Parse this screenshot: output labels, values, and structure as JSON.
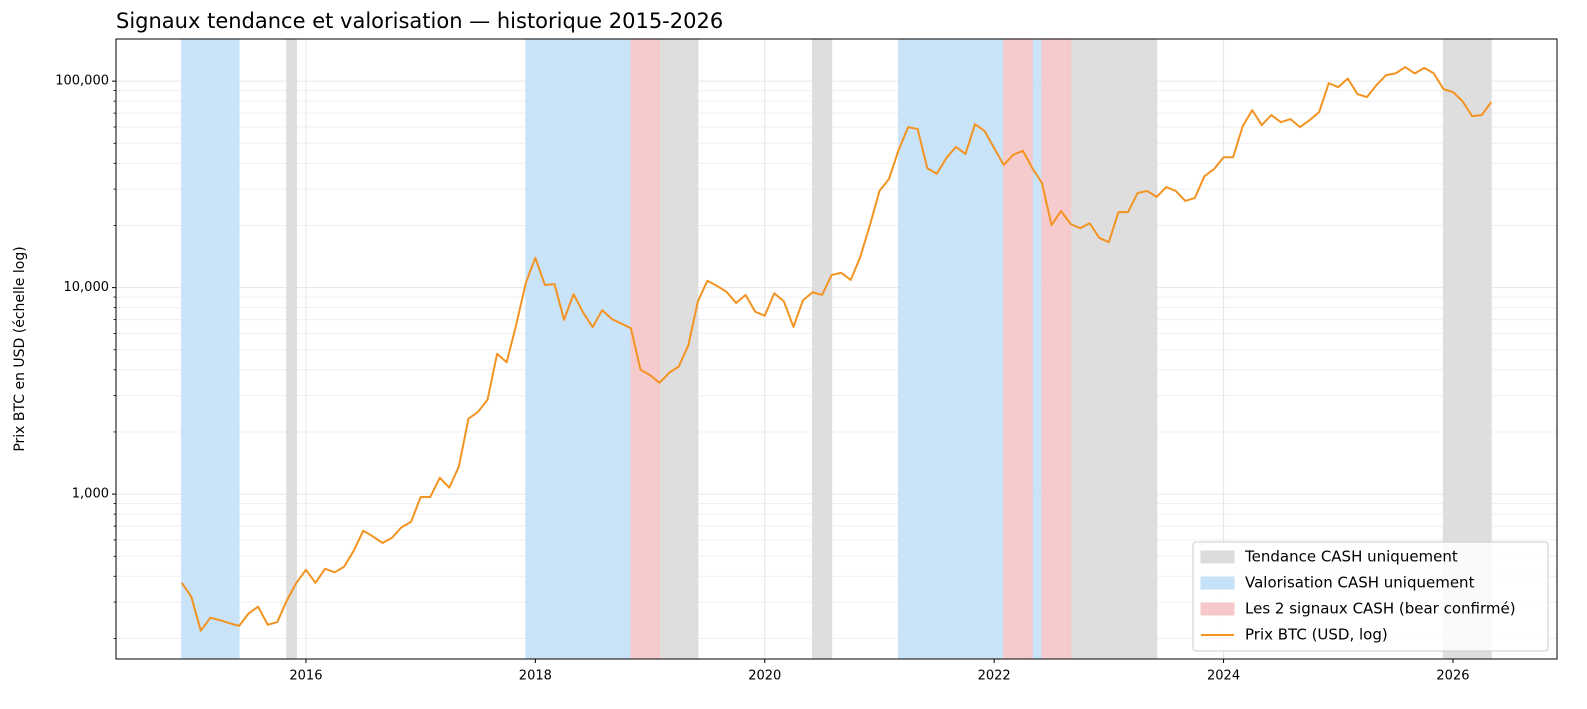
{
  "chart_data": {
    "type": "line",
    "title": "Signaux tendance et valorisation — historique 2015-2026",
    "y_label": "Prix BTC en USD (échelle log)",
    "log_y": true,
    "grid": true,
    "legend": "lower right",
    "xlim": [
      2014.344,
      2026.907
    ],
    "xticks": [
      2016,
      2018,
      2020,
      2022,
      2024,
      2026
    ],
    "ylim": [
      159,
      160000
    ],
    "yticks": [
      {
        "value": 1000,
        "label": "1,000"
      },
      {
        "value": 10000,
        "label": "10,000"
      },
      {
        "value": 100000,
        "label": "100,000"
      }
    ],
    "bands": [
      {
        "name": "Tendance CASH uniquement",
        "color": "#dcdcdc",
        "spans": [
          [
            2015.833,
            2015.917
          ],
          [
            2019.083,
            2019.417
          ],
          [
            2020.417,
            2020.583
          ],
          [
            2022.667,
            2023.417
          ],
          [
            2025.917,
            2026.333
          ]
        ]
      },
      {
        "name": "Valorisation CASH uniquement",
        "color": "#c6e2f8",
        "spans": [
          [
            2014.917,
            2015.417
          ],
          [
            2017.917,
            2018.833
          ],
          [
            2021.167,
            2022.083
          ],
          [
            2022.333,
            2022.417
          ]
        ]
      },
      {
        "name": "Les 2 signaux CASH (bear confirmé)",
        "color": "#f6c8ca",
        "spans": [
          [
            2018.833,
            2019.083
          ],
          [
            2022.083,
            2022.333
          ],
          [
            2022.417,
            2022.667
          ]
        ]
      }
    ],
    "x": [
      2014.917,
      2015,
      2015.083,
      2015.167,
      2015.25,
      2015.333,
      2015.417,
      2015.5,
      2015.583,
      2015.667,
      2015.75,
      2015.833,
      2015.917,
      2016,
      2016.083,
      2016.167,
      2016.25,
      2016.333,
      2016.417,
      2016.5,
      2016.583,
      2016.667,
      2016.75,
      2016.833,
      2016.917,
      2017,
      2017.083,
      2017.167,
      2017.25,
      2017.333,
      2017.417,
      2017.5,
      2017.583,
      2017.667,
      2017.75,
      2017.833,
      2017.917,
      2018,
      2018.083,
      2018.167,
      2018.25,
      2018.333,
      2018.417,
      2018.5,
      2018.583,
      2018.667,
      2018.75,
      2018.833,
      2018.917,
      2019,
      2019.083,
      2019.167,
      2019.25,
      2019.333,
      2019.417,
      2019.5,
      2019.583,
      2019.667,
      2019.75,
      2019.833,
      2019.917,
      2020,
      2020.083,
      2020.167,
      2020.25,
      2020.333,
      2020.417,
      2020.5,
      2020.583,
      2020.667,
      2020.75,
      2020.833,
      2020.917,
      2021,
      2021.083,
      2021.167,
      2021.25,
      2021.333,
      2021.417,
      2021.5,
      2021.583,
      2021.667,
      2021.75,
      2021.833,
      2021.917,
      2022,
      2022.083,
      2022.167,
      2022.25,
      2022.333,
      2022.417,
      2022.5,
      2022.583,
      2022.667,
      2022.75,
      2022.833,
      2022.917,
      2023,
      2023.083,
      2023.167,
      2023.25,
      2023.333,
      2023.417,
      2023.5,
      2023.583,
      2023.667,
      2023.75,
      2023.833,
      2023.917,
      2024,
      2024.083,
      2024.167,
      2024.25,
      2024.333,
      2024.417,
      2024.5,
      2024.583,
      2024.667,
      2024.75,
      2024.833,
      2024.917,
      2025,
      2025.083,
      2025.167,
      2025.25,
      2025.333,
      2025.417,
      2025.5,
      2025.583,
      2025.667,
      2025.75,
      2025.833,
      2025.917,
      2026,
      2026.083,
      2026.167,
      2026.25,
      2026.333
    ],
    "series": [
      {
        "name": "Prix BTC (USD, log)",
        "color": "#f39322",
        "values": [
          372,
          319,
          218,
          252,
          245,
          237,
          230,
          264,
          285,
          233,
          240,
          305,
          372,
          430,
          372,
          435,
          418,
          445,
          532,
          665,
          624,
          580,
          615,
          690,
          735,
          968,
          968,
          1200,
          1075,
          1360,
          2320,
          2500,
          2865,
          4780,
          4350,
          6600,
          10550,
          13950,
          10300,
          10400,
          6990,
          9300,
          7560,
          6440,
          7780,
          7040,
          6700,
          6360,
          4000,
          3770,
          3460,
          3870,
          4150,
          5240,
          8580,
          10800,
          10200,
          9540,
          8430,
          9220,
          7640,
          7310,
          9390,
          8580,
          6450,
          8670,
          9500,
          9220,
          11500,
          11800,
          10900,
          14100,
          20100,
          29400,
          33600,
          46400,
          59900,
          58600,
          37900,
          35600,
          42400,
          48000,
          44400,
          61900,
          57300,
          47400,
          39300,
          44000,
          46000,
          37900,
          32100,
          20100,
          23500,
          20300,
          19400,
          20500,
          17400,
          16600,
          23200,
          23200,
          28700,
          29400,
          27500,
          30700,
          29400,
          26300,
          27200,
          34600,
          37500,
          42800,
          42800,
          60500,
          72400,
          61300,
          68500,
          63300,
          65500,
          59900,
          64700,
          70800,
          97800,
          93500,
          103000,
          86600,
          83700,
          95600,
          107000,
          109000,
          117000,
          109000,
          116000,
          109000,
          91500,
          88500,
          80000,
          67700,
          68500,
          79000
        ]
      }
    ]
  }
}
